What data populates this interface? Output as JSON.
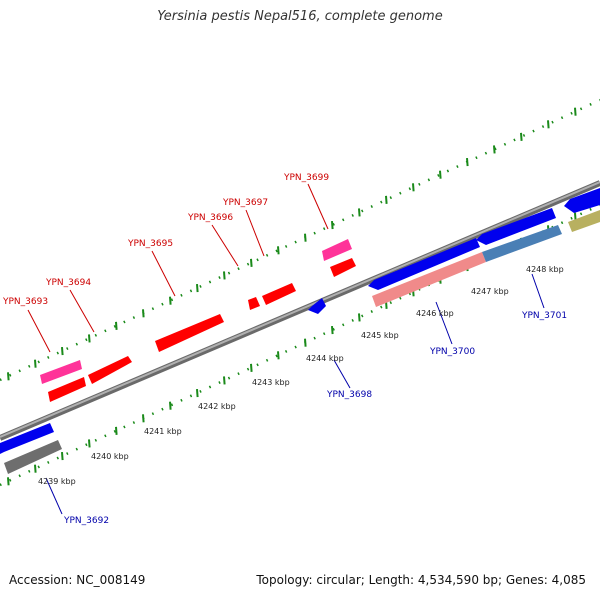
{
  "title": "Yersinia pestis Nepal516, complete genome",
  "footer": {
    "accession": "Accession: NC_008149",
    "summary": "Topology: circular; Length: 4,534,590 bp; Genes: 4,085"
  },
  "colors": {
    "forward_label": "#cc0000",
    "reverse_label": "#0000aa",
    "forward_cds": "#ff0000",
    "forward_pseudo": "#ff3399",
    "reverse_cds": "#0000ee",
    "reverse_salmon": "#f08a8a",
    "reverse_steel": "#4a7fb5",
    "reverse_gray": "#6e6e6e",
    "reverse_olive": "#b8b060",
    "backbone": "#8c8c8c",
    "tick": "#1a8a1a"
  },
  "scale_ticks": [
    {
      "label": "4239 kbp"
    },
    {
      "label": "4240 kbp"
    },
    {
      "label": "4241 kbp"
    },
    {
      "label": "4242 kbp"
    },
    {
      "label": "4243 kbp"
    },
    {
      "label": "4244 kbp"
    },
    {
      "label": "4245 kbp"
    },
    {
      "label": "4246 kbp"
    },
    {
      "label": "4247 kbp"
    },
    {
      "label": "4248 kbp"
    }
  ],
  "forward_labels": [
    {
      "text": "YPN_3693"
    },
    {
      "text": "YPN_3694"
    },
    {
      "text": "YPN_3695"
    },
    {
      "text": "YPN_3696"
    },
    {
      "text": "YPN_3697"
    },
    {
      "text": "YPN_3699"
    }
  ],
  "reverse_labels": [
    {
      "text": "YPN_3692"
    },
    {
      "text": "YPN_3698"
    },
    {
      "text": "YPN_3700"
    },
    {
      "text": "YPN_3701"
    }
  ]
}
